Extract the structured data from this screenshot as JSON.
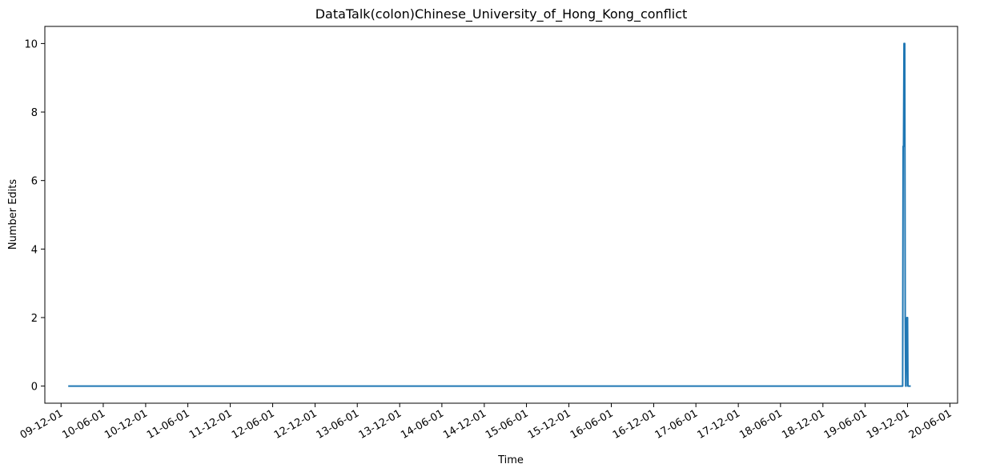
{
  "chart_data": {
    "type": "line",
    "title": "DataTalk(colon)Chinese_University_of_Hong_Kong_conflict",
    "xlabel": "Time",
    "ylabel": "Number Edits",
    "xlim": [
      "2009-09-22",
      "2020-07-04"
    ],
    "ylim": [
      -0.5,
      10.5
    ],
    "y_ticks": [
      0,
      2,
      4,
      6,
      8,
      10
    ],
    "x_ticks": [
      {
        "date": "2009-12-01",
        "label": "09-12-01"
      },
      {
        "date": "2010-06-01",
        "label": "10-06-01"
      },
      {
        "date": "2010-12-01",
        "label": "10-12-01"
      },
      {
        "date": "2011-06-01",
        "label": "11-06-01"
      },
      {
        "date": "2011-12-01",
        "label": "11-12-01"
      },
      {
        "date": "2012-06-01",
        "label": "12-06-01"
      },
      {
        "date": "2012-12-01",
        "label": "12-12-01"
      },
      {
        "date": "2013-06-01",
        "label": "13-06-01"
      },
      {
        "date": "2013-12-01",
        "label": "13-12-01"
      },
      {
        "date": "2014-06-01",
        "label": "14-06-01"
      },
      {
        "date": "2014-12-01",
        "label": "14-12-01"
      },
      {
        "date": "2015-06-01",
        "label": "15-06-01"
      },
      {
        "date": "2015-12-01",
        "label": "15-12-01"
      },
      {
        "date": "2016-06-01",
        "label": "16-06-01"
      },
      {
        "date": "2016-12-01",
        "label": "16-12-01"
      },
      {
        "date": "2017-06-01",
        "label": "17-06-01"
      },
      {
        "date": "2017-12-01",
        "label": "17-12-01"
      },
      {
        "date": "2018-06-01",
        "label": "18-06-01"
      },
      {
        "date": "2018-12-01",
        "label": "18-12-01"
      },
      {
        "date": "2019-06-01",
        "label": "19-06-01"
      },
      {
        "date": "2019-12-01",
        "label": "19-12-01"
      },
      {
        "date": "2020-06-01",
        "label": "20-06-01"
      }
    ],
    "grid": false,
    "series": [
      {
        "color": "#1f77b4",
        "points": [
          {
            "x": "2010-01-01",
            "y": 0
          },
          {
            "x": "2019-11-10",
            "y": 0
          },
          {
            "x": "2019-11-12",
            "y": 7
          },
          {
            "x": "2019-11-14",
            "y": 7
          },
          {
            "x": "2019-11-16",
            "y": 10
          },
          {
            "x": "2019-11-19",
            "y": 10
          },
          {
            "x": "2019-11-21",
            "y": 2
          },
          {
            "x": "2019-11-23",
            "y": 0
          },
          {
            "x": "2019-11-25",
            "y": 0
          },
          {
            "x": "2019-11-28",
            "y": 2
          },
          {
            "x": "2019-12-01",
            "y": 2
          },
          {
            "x": "2019-12-03",
            "y": 0
          },
          {
            "x": "2019-12-15",
            "y": 0
          }
        ]
      }
    ]
  }
}
